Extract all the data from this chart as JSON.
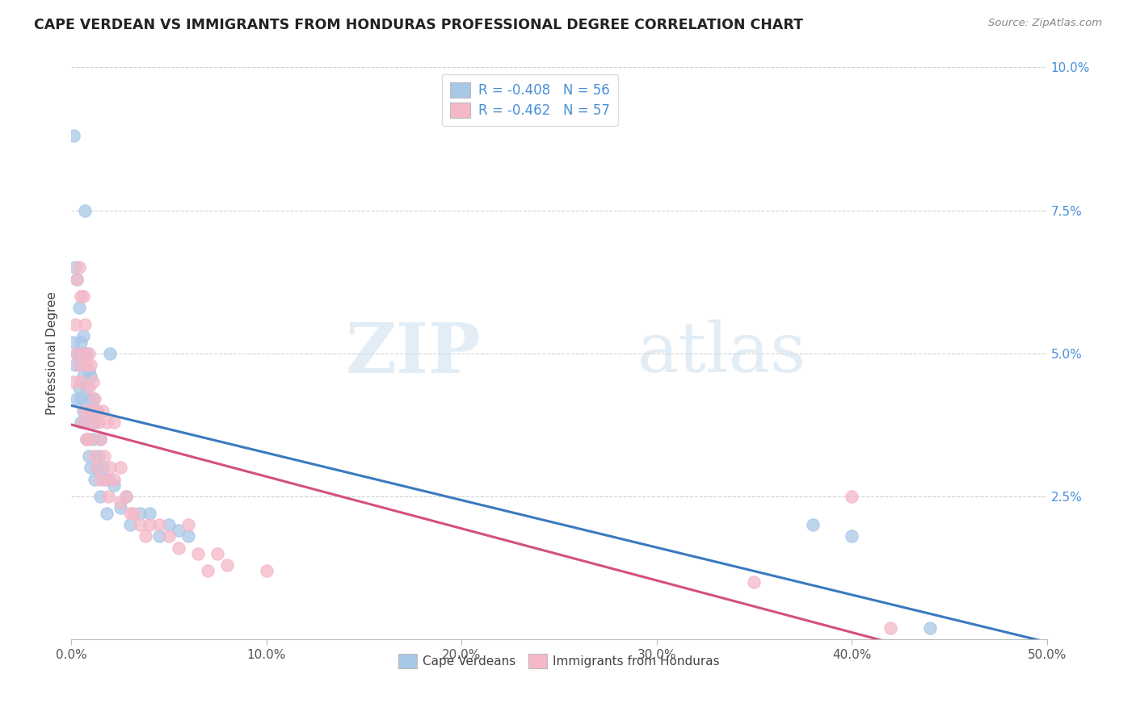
{
  "title": "CAPE VERDEAN VS IMMIGRANTS FROM HONDURAS PROFESSIONAL DEGREE CORRELATION CHART",
  "source": "Source: ZipAtlas.com",
  "ylabel": "Professional Degree",
  "xlim": [
    0.0,
    0.5
  ],
  "ylim": [
    0.0,
    0.1
  ],
  "blue_R": -0.408,
  "blue_N": 56,
  "pink_R": -0.462,
  "pink_N": 57,
  "blue_color": "#a8c8e8",
  "pink_color": "#f4b8c8",
  "blue_line_color": "#3a7abf",
  "pink_line_color": "#d45080",
  "legend1": "Cape Verdeans",
  "legend2": "Immigrants from Honduras",
  "watermark_zip": "ZIP",
  "watermark_atlas": "atlas",
  "blue_x": [
    0.001,
    0.001,
    0.002,
    0.002,
    0.003,
    0.003,
    0.003,
    0.004,
    0.004,
    0.004,
    0.005,
    0.005,
    0.005,
    0.005,
    0.006,
    0.006,
    0.006,
    0.007,
    0.007,
    0.007,
    0.008,
    0.008,
    0.008,
    0.009,
    0.009,
    0.009,
    0.01,
    0.01,
    0.01,
    0.011,
    0.011,
    0.012,
    0.012,
    0.013,
    0.013,
    0.014,
    0.015,
    0.015,
    0.016,
    0.017,
    0.018,
    0.019,
    0.02,
    0.022,
    0.025,
    0.028,
    0.03,
    0.035,
    0.04,
    0.045,
    0.05,
    0.055,
    0.06,
    0.38,
    0.4,
    0.44
  ],
  "blue_y": [
    0.088,
    0.052,
    0.065,
    0.048,
    0.063,
    0.05,
    0.042,
    0.058,
    0.05,
    0.044,
    0.052,
    0.048,
    0.042,
    0.038,
    0.053,
    0.046,
    0.04,
    0.075,
    0.05,
    0.038,
    0.05,
    0.044,
    0.035,
    0.047,
    0.042,
    0.032,
    0.046,
    0.04,
    0.03,
    0.042,
    0.035,
    0.038,
    0.028,
    0.04,
    0.03,
    0.032,
    0.035,
    0.025,
    0.03,
    0.028,
    0.022,
    0.028,
    0.05,
    0.027,
    0.023,
    0.025,
    0.02,
    0.022,
    0.022,
    0.018,
    0.02,
    0.019,
    0.018,
    0.02,
    0.018,
    0.002
  ],
  "pink_x": [
    0.001,
    0.002,
    0.003,
    0.003,
    0.004,
    0.004,
    0.005,
    0.005,
    0.006,
    0.006,
    0.006,
    0.007,
    0.007,
    0.008,
    0.008,
    0.009,
    0.009,
    0.009,
    0.01,
    0.01,
    0.011,
    0.011,
    0.012,
    0.012,
    0.013,
    0.013,
    0.014,
    0.015,
    0.015,
    0.016,
    0.017,
    0.018,
    0.018,
    0.019,
    0.02,
    0.022,
    0.022,
    0.025,
    0.025,
    0.028,
    0.03,
    0.032,
    0.035,
    0.038,
    0.04,
    0.045,
    0.05,
    0.055,
    0.06,
    0.065,
    0.07,
    0.075,
    0.08,
    0.1,
    0.35,
    0.4,
    0.42
  ],
  "pink_y": [
    0.045,
    0.055,
    0.063,
    0.05,
    0.065,
    0.048,
    0.06,
    0.045,
    0.06,
    0.05,
    0.038,
    0.055,
    0.04,
    0.048,
    0.035,
    0.05,
    0.044,
    0.035,
    0.048,
    0.04,
    0.045,
    0.038,
    0.042,
    0.032,
    0.04,
    0.03,
    0.038,
    0.035,
    0.028,
    0.04,
    0.032,
    0.028,
    0.038,
    0.025,
    0.03,
    0.028,
    0.038,
    0.024,
    0.03,
    0.025,
    0.022,
    0.022,
    0.02,
    0.018,
    0.02,
    0.02,
    0.018,
    0.016,
    0.02,
    0.015,
    0.012,
    0.015,
    0.013,
    0.012,
    0.01,
    0.025,
    0.002
  ]
}
